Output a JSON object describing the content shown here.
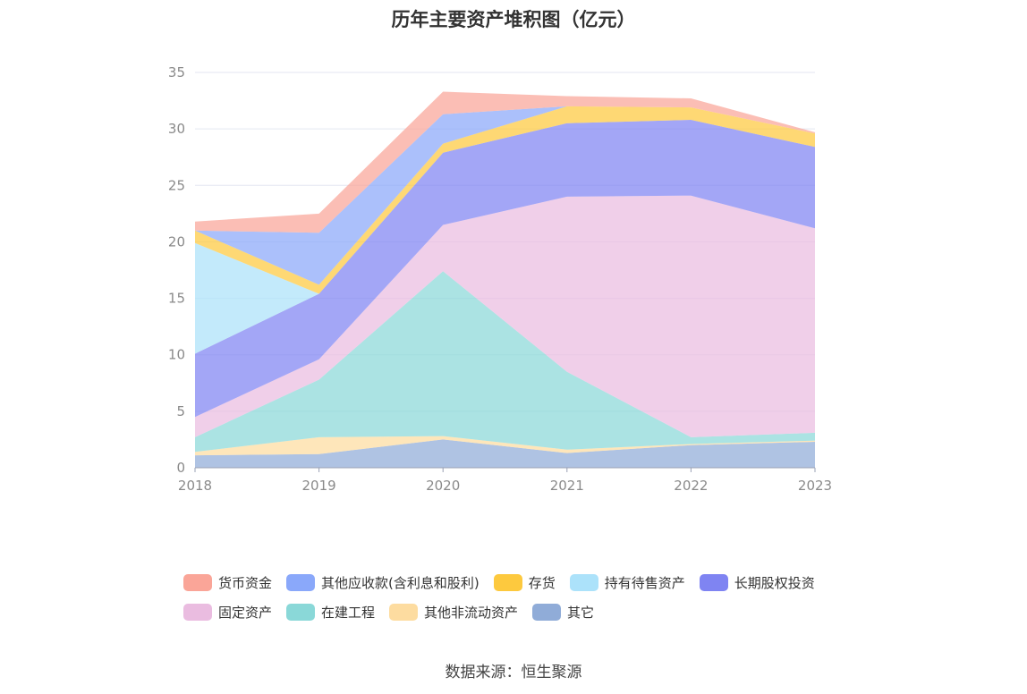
{
  "chart_data": {
    "type": "area",
    "stacked": true,
    "title": "历年主要资产堆积图（亿元）",
    "x": [
      "2018",
      "2019",
      "2020",
      "2021",
      "2022",
      "2023"
    ],
    "ylim": [
      0,
      35
    ],
    "yticks": [
      0,
      5,
      10,
      15,
      20,
      25,
      30,
      35
    ],
    "grid": true,
    "legend_position": "bottom",
    "series": [
      {
        "name": "其它",
        "color": "#90acd8",
        "values": [
          1.1,
          1.2,
          2.5,
          1.3,
          2.0,
          2.3
        ]
      },
      {
        "name": "其他非流动资产",
        "color": "#fddca0",
        "values": [
          0.3,
          1.5,
          0.3,
          0.3,
          0.1,
          0.1
        ]
      },
      {
        "name": "在建工程",
        "color": "#8ad8d8",
        "values": [
          1.3,
          5.1,
          14.6,
          6.9,
          0.6,
          0.7
        ]
      },
      {
        "name": "固定资产",
        "color": "#eabce0",
        "values": [
          1.8,
          1.8,
          4.1,
          15.5,
          21.4,
          18.1
        ]
      },
      {
        "name": "长期股权投资",
        "color": "#7f84f2",
        "values": [
          5.6,
          5.8,
          6.4,
          6.5,
          6.7,
          7.2
        ]
      },
      {
        "name": "持有待售资产",
        "color": "#ace2fa",
        "values": [
          9.8,
          0.0,
          0.0,
          0.0,
          0.0,
          0.0
        ]
      },
      {
        "name": "存货",
        "color": "#fdc93e",
        "values": [
          1.1,
          0.8,
          0.8,
          1.5,
          1.1,
          1.2
        ]
      },
      {
        "name": "其他应收款(含利息和股利)",
        "color": "#8aa8fa",
        "values": [
          0.0,
          4.6,
          2.6,
          0.0,
          0.0,
          0.0
        ]
      },
      {
        "name": "货币资金",
        "color": "#faa598",
        "values": [
          0.8,
          1.7,
          2.0,
          0.9,
          0.8,
          0.1
        ]
      }
    ]
  },
  "legend": {
    "rows": [
      [
        {
          "label": "货币资金",
          "color": "#faa598"
        },
        {
          "label": "其他应收款(含利息和股利)",
          "color": "#8aa8fa"
        },
        {
          "label": "存货",
          "color": "#fdc93e"
        },
        {
          "label": "持有待售资产",
          "color": "#ace2fa"
        },
        {
          "label": "长期股权投资",
          "color": "#7f84f2"
        }
      ],
      [
        {
          "label": "固定资产",
          "color": "#eabce0"
        },
        {
          "label": "在建工程",
          "color": "#8ad8d8"
        },
        {
          "label": "其他非流动资产",
          "color": "#fddca0"
        },
        {
          "label": "其它",
          "color": "#90acd8"
        }
      ]
    ]
  },
  "source_note": "数据来源：恒生聚源"
}
